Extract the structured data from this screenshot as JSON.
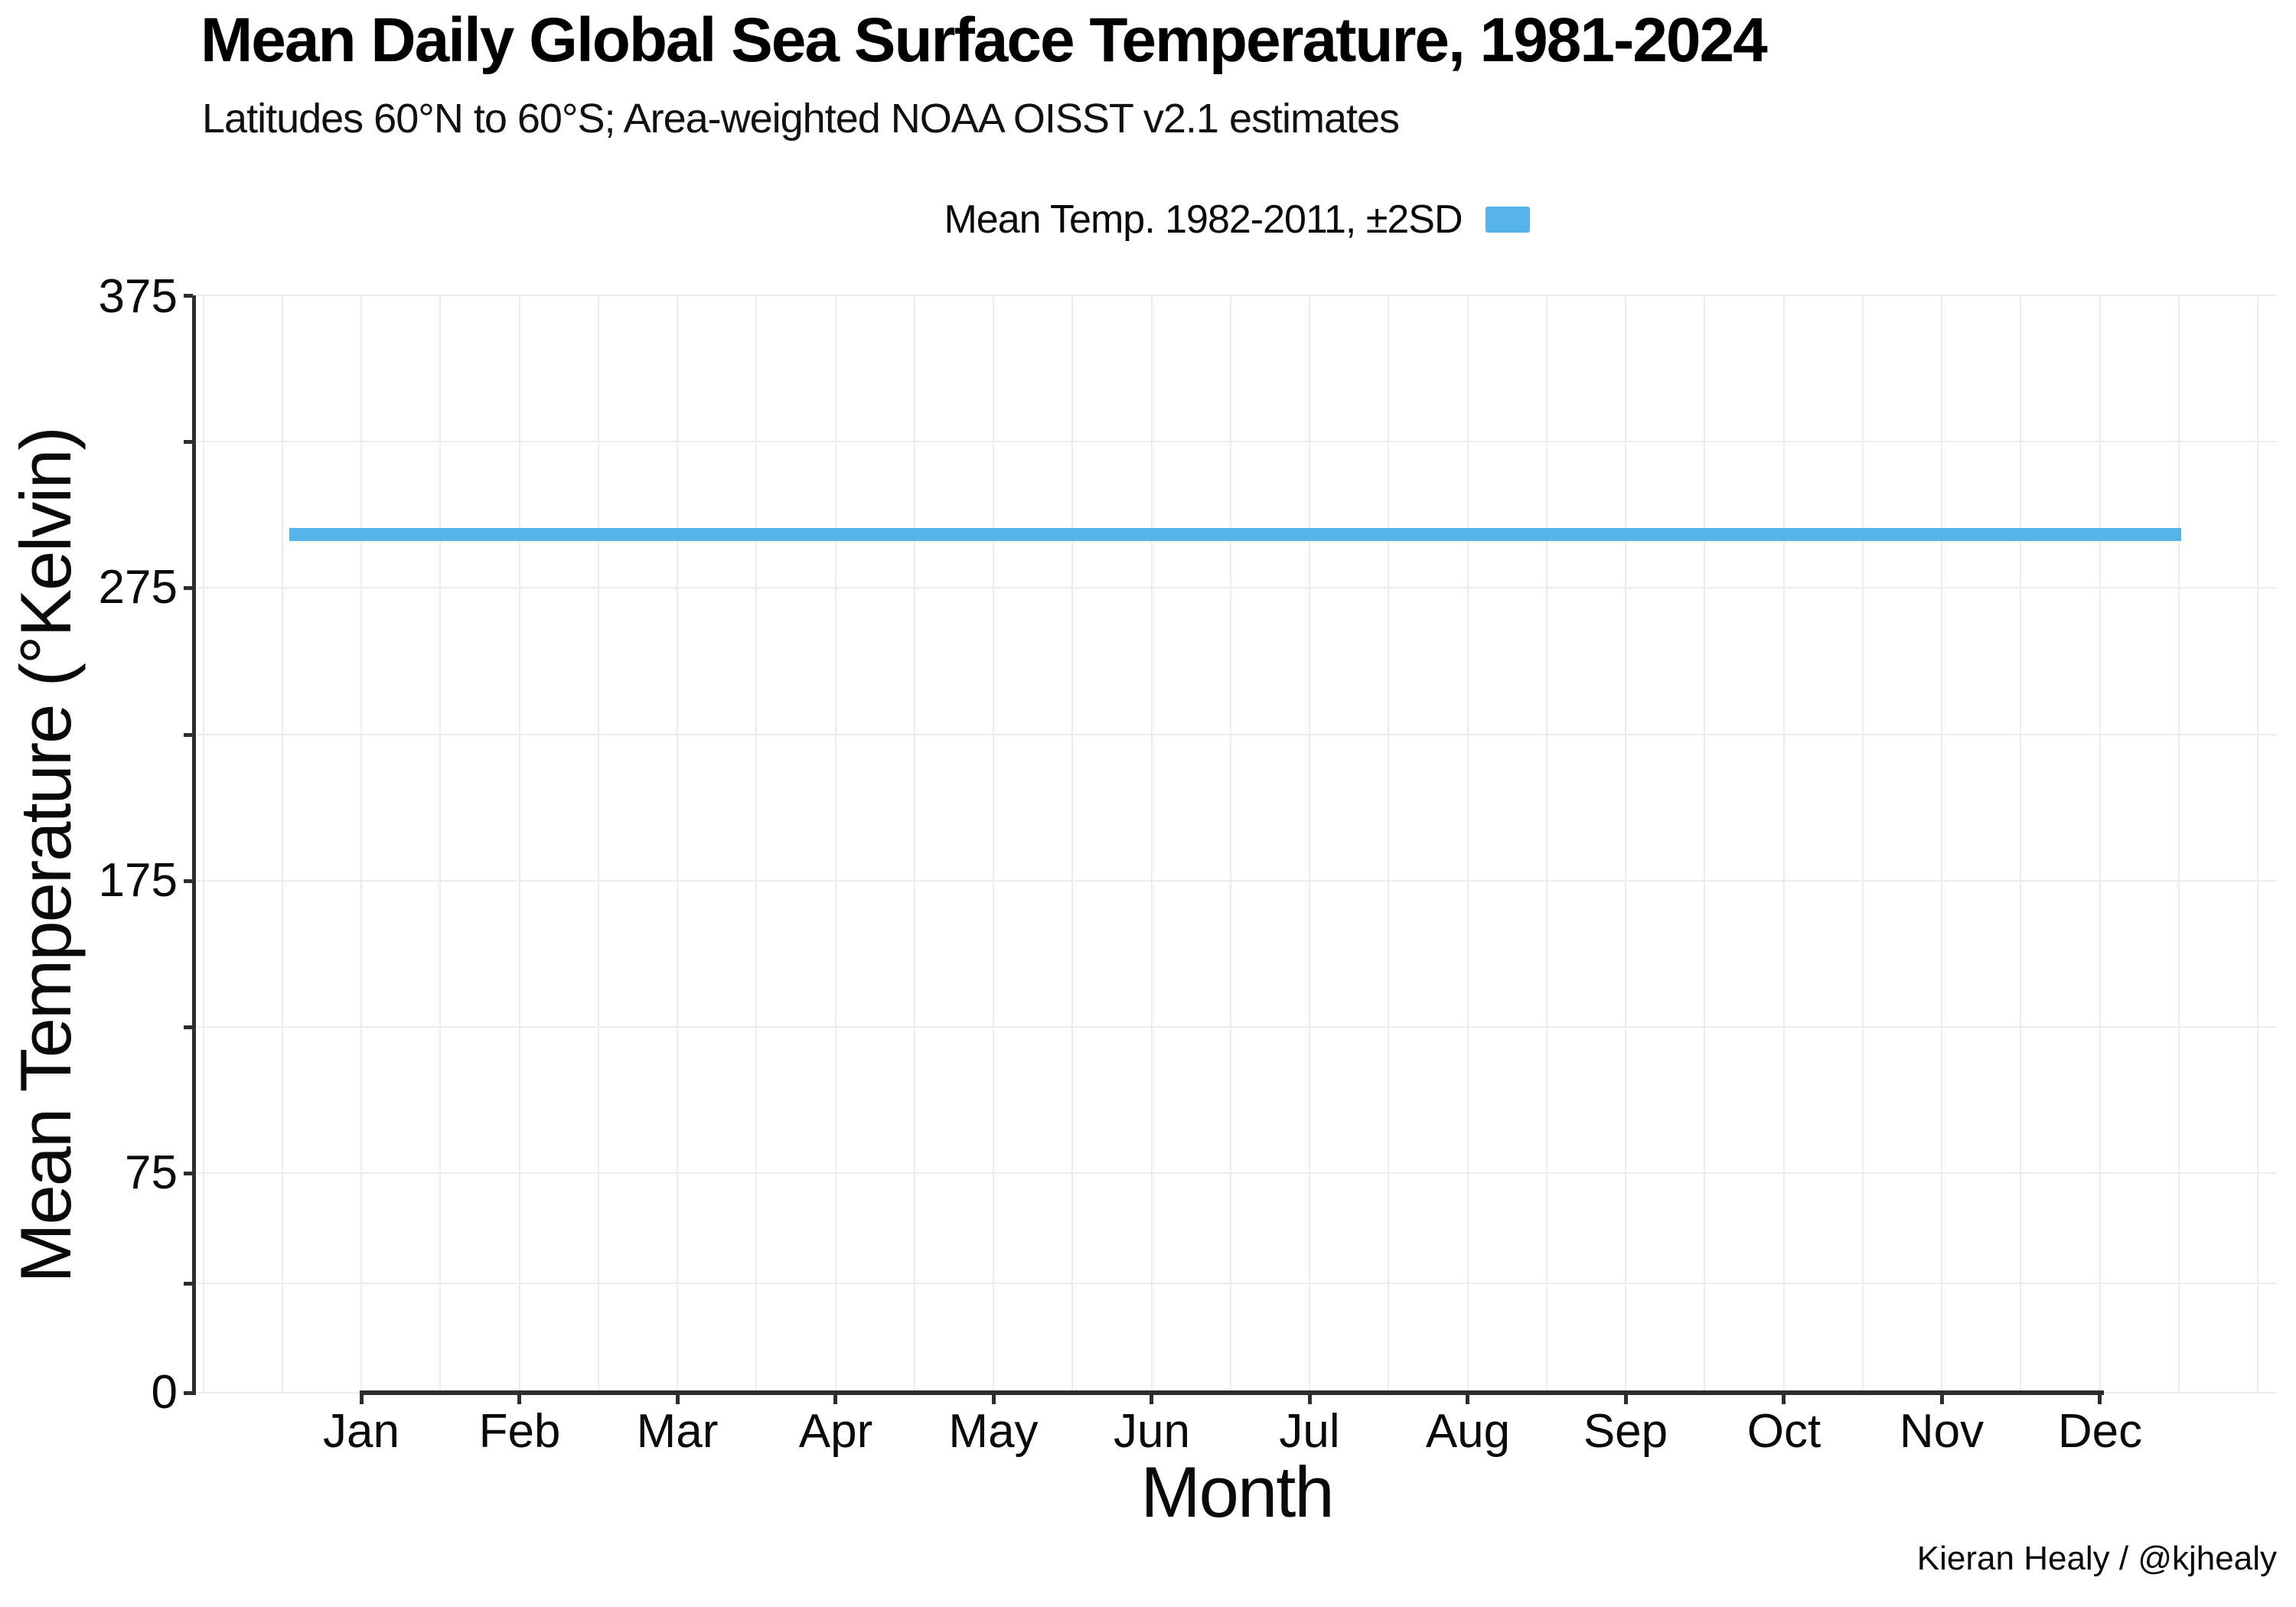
{
  "title": "Mean Daily Global Sea Surface Temperature, 1981-2024",
  "subtitle": "Latitudes 60°N to 60°S; Area-weighted NOAA OISST v2.1 estimates",
  "legend": {
    "label": "Mean Temp. 1982-2011, ±2SD",
    "swatch_color": "#56B4E9"
  },
  "x_axis": {
    "title": "Month",
    "ticks": [
      "Jan",
      "Feb",
      "Mar",
      "Apr",
      "May",
      "Jun",
      "Jul",
      "Aug",
      "Sep",
      "Oct",
      "Nov",
      "Dec"
    ]
  },
  "y_axis": {
    "title": "Mean Temperature (°Kelvin)",
    "tick_labels": [
      "375",
      "275",
      "175",
      "75",
      "0"
    ]
  },
  "caption": "Kieran Healy / @kjhealy",
  "colors": {
    "ribbon": "#56B4E9",
    "axis": "#2e2e2e",
    "grid": "#ececec",
    "text": "#0a0a0a"
  },
  "chart_data": {
    "type": "area",
    "title": "Mean Daily Global Sea Surface Temperature, 1981-2024",
    "subtitle": "Latitudes 60°N to 60°S; Area-weighted NOAA OISST v2.1 estimates",
    "xlabel": "Month",
    "ylabel": "Mean Temperature (°Kelvin)",
    "x": [
      "Jan",
      "Feb",
      "Mar",
      "Apr",
      "May",
      "Jun",
      "Jul",
      "Aug",
      "Sep",
      "Oct",
      "Nov",
      "Dec"
    ],
    "ylim": [
      0,
      375
    ],
    "yticks_major": [
      0,
      75,
      175,
      275,
      375
    ],
    "yticks_minor": [
      37.5,
      125,
      225,
      325
    ],
    "grid": true,
    "legend_position": "top-center",
    "series": [
      {
        "name": "Mean Temp. 1982-2011, ±2SD",
        "kind": "ribbon",
        "color": "#56B4E9",
        "mean": [
          293.5,
          293.5,
          293.5,
          293.5,
          293.5,
          293.5,
          293.5,
          293.5,
          293.5,
          293.5,
          293.5,
          293.5
        ],
        "lower": [
          291.4,
          291.4,
          291.4,
          291.4,
          291.4,
          291.4,
          291.4,
          291.4,
          291.4,
          291.4,
          291.4,
          291.4
        ],
        "upper": [
          295.6,
          295.6,
          295.6,
          295.6,
          295.6,
          295.6,
          295.6,
          295.6,
          295.6,
          295.6,
          295.6,
          295.6
        ]
      }
    ],
    "caption": "Kieran Healy / @kjhealy"
  }
}
